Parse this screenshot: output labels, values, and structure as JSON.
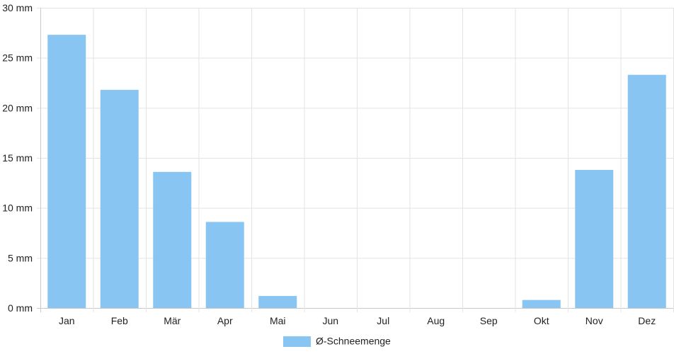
{
  "chart_data": {
    "type": "bar",
    "categories": [
      "Jan",
      "Feb",
      "Mär",
      "Apr",
      "Mai",
      "Jun",
      "Jul",
      "Aug",
      "Sep",
      "Okt",
      "Nov",
      "Dez"
    ],
    "series": [
      {
        "name": "Ø-Schneemenge",
        "values": [
          27.3,
          21.8,
          13.6,
          8.6,
          1.2,
          0,
          0,
          0,
          0,
          0.8,
          13.8,
          23.3
        ],
        "color": "#89c5f3"
      }
    ],
    "y_ticks": [
      "0 mm",
      "5 mm",
      "10 mm",
      "15 mm",
      "20 mm",
      "25 mm",
      "30 mm"
    ],
    "ylim": [
      0,
      30
    ],
    "y_unit": "mm",
    "grid": true,
    "legend_position": "bottom-center"
  }
}
